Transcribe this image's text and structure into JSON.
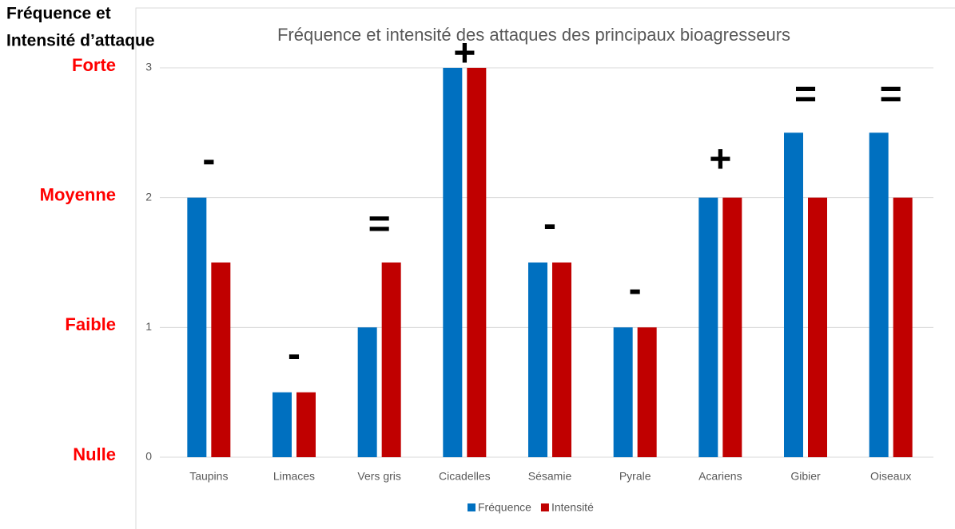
{
  "chart_data": {
    "type": "bar",
    "title": "Fréquence et intensité des attaques des principaux bioagresseurs",
    "ylabel": [
      "Fréquence et",
      "Intensité d’attaque"
    ],
    "categories": [
      "Taupins",
      "Limaces",
      "Vers gris",
      "Cicadelles",
      "Sésamie",
      "Pyrale",
      "Acariens",
      "Gibier",
      "Oiseaux"
    ],
    "series": [
      {
        "name": "Fréquence",
        "color": "#0070c0",
        "values": [
          2,
          0.5,
          1,
          3,
          1.5,
          1,
          2,
          2.5,
          2.5
        ]
      },
      {
        "name": "Intensité",
        "color": "#c00000",
        "values": [
          1.5,
          0.5,
          1.5,
          3,
          1.5,
          1,
          2,
          2,
          2
        ]
      }
    ],
    "annotations": [
      "-",
      "-",
      "=",
      "+",
      "-",
      "-",
      "+",
      "=",
      "="
    ],
    "ylim": [
      0,
      3
    ],
    "yticks": [
      0,
      1,
      2,
      3
    ],
    "level_labels": [
      "Nulle",
      "Faible",
      "Moyenne",
      "Forte"
    ],
    "grid": true,
    "legend": "bottom"
  }
}
